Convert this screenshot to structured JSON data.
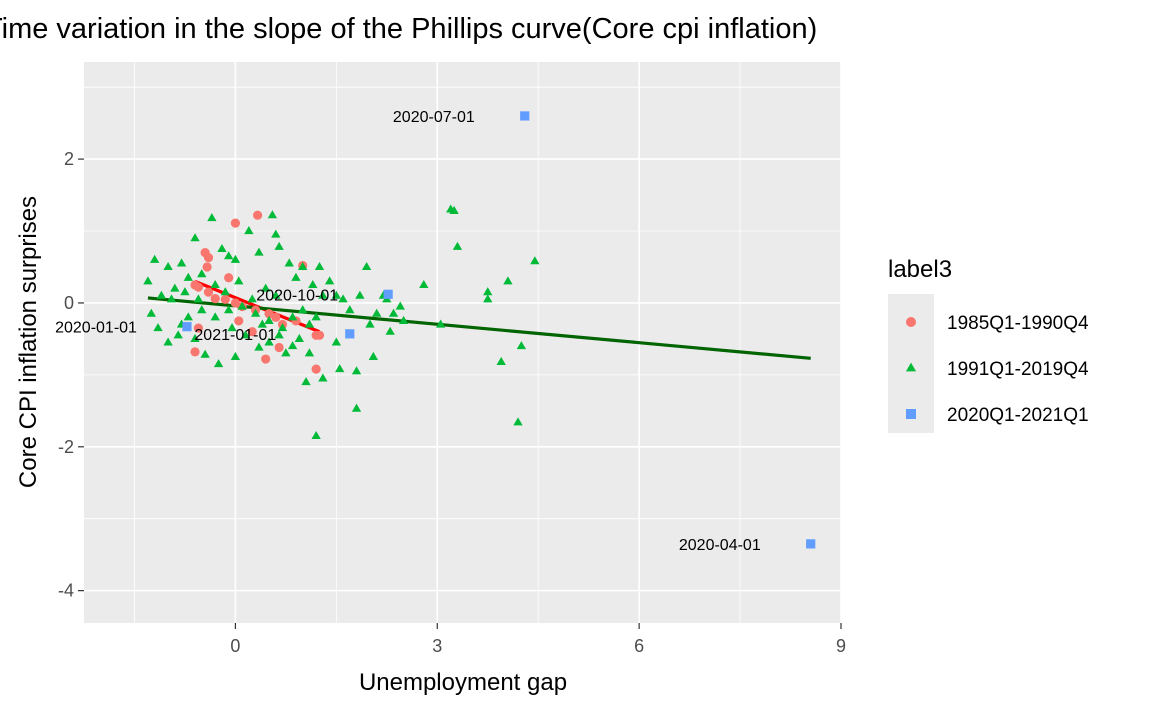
{
  "chart_data": {
    "type": "scatter",
    "title": "Time variation in the slope of the Phillips curve(Core cpi inflation)",
    "xlabel": "Unemployment gap",
    "ylabel": "Core CPI inflation surprises",
    "xlim": [
      -2.25,
      9.0
    ],
    "ylim": [
      -4.45,
      3.35
    ],
    "xticks": [
      0,
      3,
      6,
      9
    ],
    "xtick_labels": [
      "0",
      "3",
      "6",
      "9"
    ],
    "yticks": [
      -4,
      -2,
      0,
      2
    ],
    "ytick_labels": [
      "-4",
      "-2",
      "0",
      "2"
    ],
    "grid": true,
    "legend": {
      "title": "label3",
      "position": "right",
      "entries": [
        {
          "label": "1985Q1-1990Q4",
          "color": "#F8766D",
          "shape": "circle"
        },
        {
          "label": "1991Q1-2019Q4",
          "color": "#00BA38",
          "shape": "triangle"
        },
        {
          "label": "2020Q1-2021Q1",
          "color": "#619CFF",
          "shape": "square"
        }
      ]
    },
    "series": [
      {
        "name": "1985Q1-1990Q4",
        "color": "#F8766D",
        "shape": "circle",
        "points": [
          [
            0.0,
            1.11
          ],
          [
            0.33,
            1.22
          ],
          [
            -0.45,
            0.7
          ],
          [
            -0.4,
            0.63
          ],
          [
            -0.42,
            0.5
          ],
          [
            -0.6,
            0.25
          ],
          [
            -0.55,
            0.22
          ],
          [
            -0.4,
            0.15
          ],
          [
            -0.3,
            0.06
          ],
          [
            -0.15,
            0.05
          ],
          [
            0.0,
            0.0
          ],
          [
            0.1,
            -0.05
          ],
          [
            0.3,
            -0.1
          ],
          [
            0.5,
            -0.15
          ],
          [
            0.6,
            -0.2
          ],
          [
            1.0,
            0.52
          ],
          [
            1.2,
            -0.45
          ],
          [
            -0.55,
            -0.35
          ],
          [
            -0.6,
            -0.68
          ],
          [
            0.45,
            -0.78
          ],
          [
            0.65,
            -0.62
          ],
          [
            1.2,
            -0.92
          ],
          [
            0.7,
            -0.3
          ],
          [
            1.25,
            -0.45
          ],
          [
            0.9,
            -0.25
          ],
          [
            0.05,
            -0.25
          ],
          [
            -0.1,
            0.35
          ],
          [
            0.25,
            -0.4
          ]
        ]
      },
      {
        "name": "1991Q1-2019Q4",
        "color": "#00BA38",
        "shape": "triangle",
        "points": [
          [
            -1.2,
            0.6
          ],
          [
            -1.3,
            0.3
          ],
          [
            -1.1,
            0.1
          ],
          [
            -1.0,
            0.5
          ],
          [
            -0.8,
            0.55
          ],
          [
            -0.9,
            0.2
          ],
          [
            -0.7,
            0.35
          ],
          [
            -0.5,
            0.4
          ],
          [
            -0.6,
            0.9
          ],
          [
            -0.35,
            1.18
          ],
          [
            -0.2,
            0.75
          ],
          [
            -0.1,
            0.65
          ],
          [
            0.0,
            0.6
          ],
          [
            0.2,
            1.0
          ],
          [
            0.35,
            0.7
          ],
          [
            0.55,
            1.22
          ],
          [
            0.6,
            0.95
          ],
          [
            0.65,
            0.78
          ],
          [
            0.8,
            0.55
          ],
          [
            0.9,
            0.35
          ],
          [
            1.0,
            0.5
          ],
          [
            1.25,
            0.5
          ],
          [
            1.15,
            0.25
          ],
          [
            1.3,
            0.1
          ],
          [
            1.5,
            0.1
          ],
          [
            1.6,
            0.05
          ],
          [
            1.7,
            -0.1
          ],
          [
            1.85,
            0.1
          ],
          [
            1.95,
            0.5
          ],
          [
            2.1,
            -0.15
          ],
          [
            2.2,
            0.1
          ],
          [
            2.35,
            -0.15
          ],
          [
            2.45,
            -0.05
          ],
          [
            2.5,
            -0.25
          ],
          [
            2.8,
            0.25
          ],
          [
            3.2,
            1.3
          ],
          [
            3.25,
            1.28
          ],
          [
            3.3,
            0.78
          ],
          [
            3.75,
            0.15
          ],
          [
            3.75,
            0.05
          ],
          [
            4.05,
            0.3
          ],
          [
            4.45,
            0.58
          ],
          [
            3.05,
            -0.3
          ],
          [
            3.95,
            -0.82
          ],
          [
            4.25,
            -0.6
          ],
          [
            4.2,
            -1.66
          ],
          [
            1.2,
            -1.85
          ],
          [
            1.8,
            -1.47
          ],
          [
            1.05,
            -1.1
          ],
          [
            1.3,
            -1.05
          ],
          [
            1.55,
            -0.92
          ],
          [
            1.8,
            -0.95
          ],
          [
            2.05,
            -0.75
          ],
          [
            1.5,
            -0.55
          ],
          [
            2.3,
            -0.4
          ],
          [
            2.0,
            -0.3
          ],
          [
            1.1,
            -0.3
          ],
          [
            0.95,
            -0.5
          ],
          [
            0.75,
            -0.7
          ],
          [
            0.5,
            -0.55
          ],
          [
            0.35,
            -0.62
          ],
          [
            0.0,
            -0.75
          ],
          [
            -0.25,
            -0.85
          ],
          [
            -0.45,
            -0.72
          ],
          [
            -0.85,
            -0.45
          ],
          [
            -1.0,
            -0.55
          ],
          [
            -1.15,
            -0.35
          ],
          [
            -1.25,
            -0.15
          ],
          [
            -0.7,
            -0.2
          ],
          [
            -0.5,
            -0.1
          ],
          [
            -0.3,
            -0.2
          ],
          [
            -0.1,
            -0.1
          ],
          [
            0.1,
            -0.05
          ],
          [
            0.3,
            -0.15
          ],
          [
            0.5,
            -0.25
          ],
          [
            0.7,
            -0.35
          ],
          [
            0.85,
            -0.2
          ],
          [
            1.0,
            -0.1
          ],
          [
            1.2,
            -0.2
          ],
          [
            -0.95,
            0.05
          ],
          [
            -0.75,
            0.15
          ],
          [
            -0.55,
            0.05
          ],
          [
            -0.3,
            0.25
          ],
          [
            -0.15,
            0.15
          ],
          [
            0.05,
            0.3
          ],
          [
            0.25,
            0.05
          ],
          [
            0.45,
            0.2
          ],
          [
            0.6,
            0.1
          ],
          [
            -0.05,
            -0.35
          ],
          [
            0.15,
            -0.45
          ],
          [
            0.4,
            -0.3
          ],
          [
            0.65,
            -0.45
          ],
          [
            0.85,
            -0.6
          ],
          [
            1.1,
            -0.7
          ],
          [
            -0.6,
            -0.5
          ],
          [
            -0.8,
            -0.3
          ],
          [
            1.4,
            0.3
          ],
          [
            2.25,
            0.05
          ]
        ]
      },
      {
        "name": "2020Q1-2021Q1",
        "color": "#619CFF",
        "shape": "square",
        "points": [
          [
            -0.72,
            -0.33
          ],
          [
            8.55,
            -3.35
          ],
          [
            4.3,
            2.6
          ],
          [
            2.27,
            0.12
          ],
          [
            1.7,
            -0.43
          ]
        ]
      }
    ],
    "fit_lines": [
      {
        "color": "#FF0000",
        "x": [
          -0.6,
          1.25
        ],
        "y": [
          0.3,
          -0.4
        ]
      },
      {
        "color": "#006400",
        "x": [
          -1.3,
          8.55
        ],
        "y": [
          0.07,
          -0.77
        ]
      }
    ],
    "annotations": [
      {
        "text": "2020-07-01",
        "x": 4.3,
        "y": 2.6,
        "anchor": "end"
      },
      {
        "text": "2020-10-01",
        "x": 2.27,
        "y": 0.12,
        "anchor": "end"
      },
      {
        "text": "2021-01-01",
        "x": 1.35,
        "y": -0.43,
        "anchor": "end"
      },
      {
        "text": "2020-04-01",
        "x": 8.55,
        "y": -3.35,
        "anchor": "end"
      },
      {
        "text": "2020-01-01",
        "x": -0.72,
        "y": -0.33,
        "anchor": "end"
      }
    ]
  }
}
